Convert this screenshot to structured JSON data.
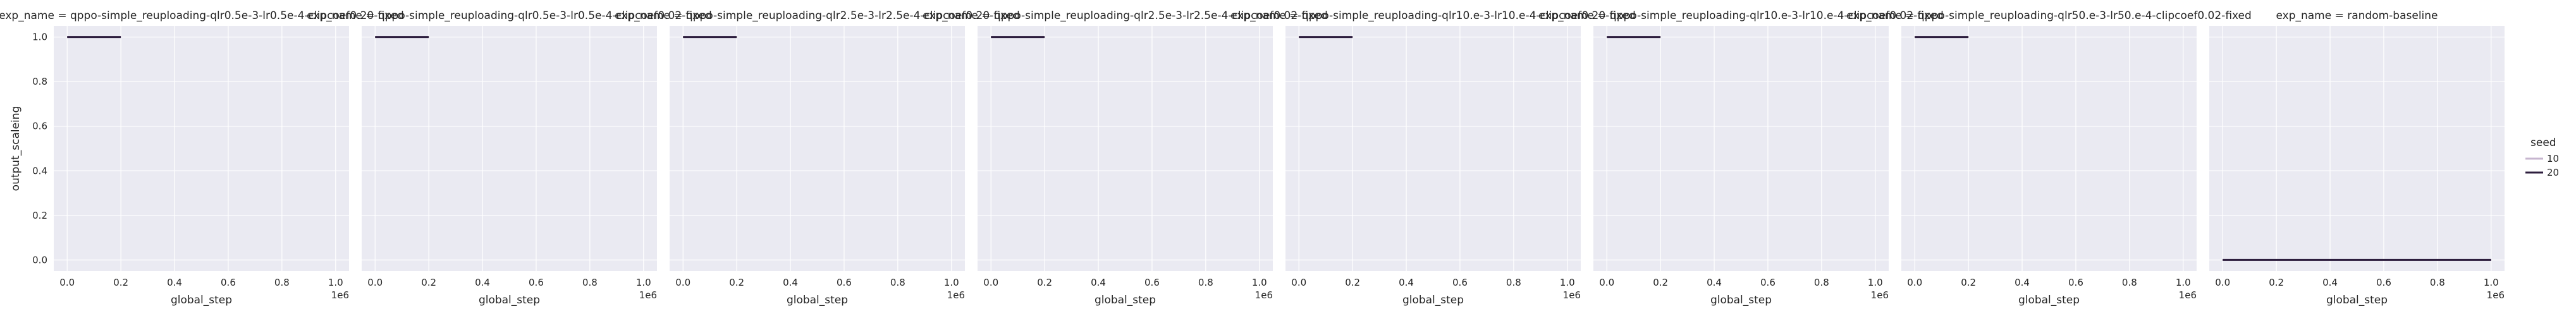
{
  "figure": {
    "legend_title": "seed",
    "legend_placement": "right"
  },
  "chart_data": [
    {
      "type": "line",
      "title": "exp_name = qppo-simple_reuploading-qlr0.5e-3-lr0.5e-4-clipcoef0.20-fixed",
      "xlabel": "global_step",
      "ylabel": "output_scaleing",
      "x_offset_label": "1e6",
      "xlim": [
        -0.05,
        1.05
      ],
      "ylim": [
        -0.05,
        1.05
      ],
      "xticks": [
        "0.0",
        "0.2",
        "0.4",
        "0.6",
        "0.8",
        "1.0"
      ],
      "yticks": [
        "0.0",
        "0.2",
        "0.4",
        "0.6",
        "0.8",
        "1.0"
      ],
      "grid": true,
      "series": [
        {
          "name": "10",
          "x": [
            0.0,
            0.2
          ],
          "y": [
            1.0,
            1.0
          ]
        },
        {
          "name": "20",
          "x": [
            0.0,
            0.2
          ],
          "y": [
            1.0,
            1.0
          ]
        }
      ]
    },
    {
      "type": "line",
      "title": "exp_name = qppo-simple_reuploading-qlr0.5e-3-lr0.5e-4-clipcoef0.02-fixed",
      "xlabel": "global_step",
      "ylabel": "",
      "x_offset_label": "1e6",
      "xlim": [
        -0.05,
        1.05
      ],
      "ylim": [
        -0.05,
        1.05
      ],
      "xticks": [
        "0.0",
        "0.2",
        "0.4",
        "0.6",
        "0.8",
        "1.0"
      ],
      "yticks": [],
      "grid": true,
      "series": [
        {
          "name": "10",
          "x": [
            0.0,
            0.2
          ],
          "y": [
            1.0,
            1.0
          ]
        },
        {
          "name": "20",
          "x": [
            0.0,
            0.2
          ],
          "y": [
            1.0,
            1.0
          ]
        }
      ]
    },
    {
      "type": "line",
      "title": "exp_name = qppo-simple_reuploading-qlr2.5e-3-lr2.5e-4-clipcoef0.20-fixed",
      "xlabel": "global_step",
      "ylabel": "",
      "x_offset_label": "1e6",
      "xlim": [
        -0.05,
        1.05
      ],
      "ylim": [
        -0.05,
        1.05
      ],
      "xticks": [
        "0.0",
        "0.2",
        "0.4",
        "0.6",
        "0.8",
        "1.0"
      ],
      "yticks": [],
      "grid": true,
      "series": [
        {
          "name": "10",
          "x": [
            0.0,
            0.2
          ],
          "y": [
            1.0,
            1.0
          ]
        },
        {
          "name": "20",
          "x": [
            0.0,
            0.2
          ],
          "y": [
            1.0,
            1.0
          ]
        }
      ]
    },
    {
      "type": "line",
      "title": "exp_name = qppo-simple_reuploading-qlr2.5e-3-lr2.5e-4-clipcoef0.02-fixed",
      "xlabel": "global_step",
      "ylabel": "",
      "x_offset_label": "1e6",
      "xlim": [
        -0.05,
        1.05
      ],
      "ylim": [
        -0.05,
        1.05
      ],
      "xticks": [
        "0.0",
        "0.2",
        "0.4",
        "0.6",
        "0.8",
        "1.0"
      ],
      "yticks": [],
      "grid": true,
      "series": [
        {
          "name": "10",
          "x": [
            0.0,
            0.2
          ],
          "y": [
            1.0,
            1.0
          ]
        },
        {
          "name": "20",
          "x": [
            0.0,
            0.2
          ],
          "y": [
            1.0,
            1.0
          ]
        }
      ]
    },
    {
      "type": "line",
      "title": "exp_name = qppo-simple_reuploading-qlr10.e-3-lr10.e-4-clipcoef0.20-fixed",
      "xlabel": "global_step",
      "ylabel": "",
      "x_offset_label": "1e6",
      "xlim": [
        -0.05,
        1.05
      ],
      "ylim": [
        -0.05,
        1.05
      ],
      "xticks": [
        "0.0",
        "0.2",
        "0.4",
        "0.6",
        "0.8",
        "1.0"
      ],
      "yticks": [],
      "grid": true,
      "series": [
        {
          "name": "10",
          "x": [
            0.0,
            0.2
          ],
          "y": [
            1.0,
            1.0
          ]
        },
        {
          "name": "20",
          "x": [
            0.0,
            0.2
          ],
          "y": [
            1.0,
            1.0
          ]
        }
      ]
    },
    {
      "type": "line",
      "title": "exp_name = qppo-simple_reuploading-qlr10.e-3-lr10.e-4-clipcoef0.02-fixed",
      "xlabel": "global_step",
      "ylabel": "",
      "x_offset_label": "1e6",
      "xlim": [
        -0.05,
        1.05
      ],
      "ylim": [
        -0.05,
        1.05
      ],
      "xticks": [
        "0.0",
        "0.2",
        "0.4",
        "0.6",
        "0.8",
        "1.0"
      ],
      "yticks": [],
      "grid": true,
      "series": [
        {
          "name": "10",
          "x": [
            0.0,
            0.2
          ],
          "y": [
            1.0,
            1.0
          ]
        },
        {
          "name": "20",
          "x": [
            0.0,
            0.2
          ],
          "y": [
            1.0,
            1.0
          ]
        }
      ]
    },
    {
      "type": "line",
      "title": "exp_name = qppo-simple_reuploading-qlr50.e-3-lr50.e-4-clipcoef0.02-fixed",
      "xlabel": "global_step",
      "ylabel": "",
      "x_offset_label": "1e6",
      "xlim": [
        -0.05,
        1.05
      ],
      "ylim": [
        -0.05,
        1.05
      ],
      "xticks": [
        "0.0",
        "0.2",
        "0.4",
        "0.6",
        "0.8",
        "1.0"
      ],
      "yticks": [],
      "grid": true,
      "series": [
        {
          "name": "10",
          "x": [
            0.0,
            0.2
          ],
          "y": [
            1.0,
            1.0
          ]
        },
        {
          "name": "20",
          "x": [
            0.0,
            0.2
          ],
          "y": [
            1.0,
            1.0
          ]
        }
      ]
    },
    {
      "type": "line",
      "title": "exp_name = random-baseline",
      "xlabel": "global_step",
      "ylabel": "",
      "x_offset_label": "1e6",
      "xlim": [
        -0.05,
        1.05
      ],
      "ylim": [
        -0.05,
        1.05
      ],
      "xticks": [
        "0.0",
        "0.2",
        "0.4",
        "0.6",
        "0.8",
        "1.0"
      ],
      "yticks": [],
      "grid": true,
      "series": [
        {
          "name": "10",
          "x": [
            0.0,
            1.0
          ],
          "y": [
            0.0,
            0.0
          ]
        },
        {
          "name": "20",
          "x": [
            0.0,
            1.0
          ],
          "y": [
            0.0,
            0.0
          ]
        }
      ]
    }
  ],
  "legend": {
    "title": "seed",
    "entries": [
      {
        "label": "10",
        "color": "#c7b6cf"
      },
      {
        "label": "20",
        "color": "#2d1e3e"
      }
    ]
  },
  "style": {
    "panel_bg": "#eaeaf2",
    "grid_color": "#ffffff",
    "series_colors": {
      "10": "#c7b6cf",
      "20": "#2d1e3e"
    }
  }
}
